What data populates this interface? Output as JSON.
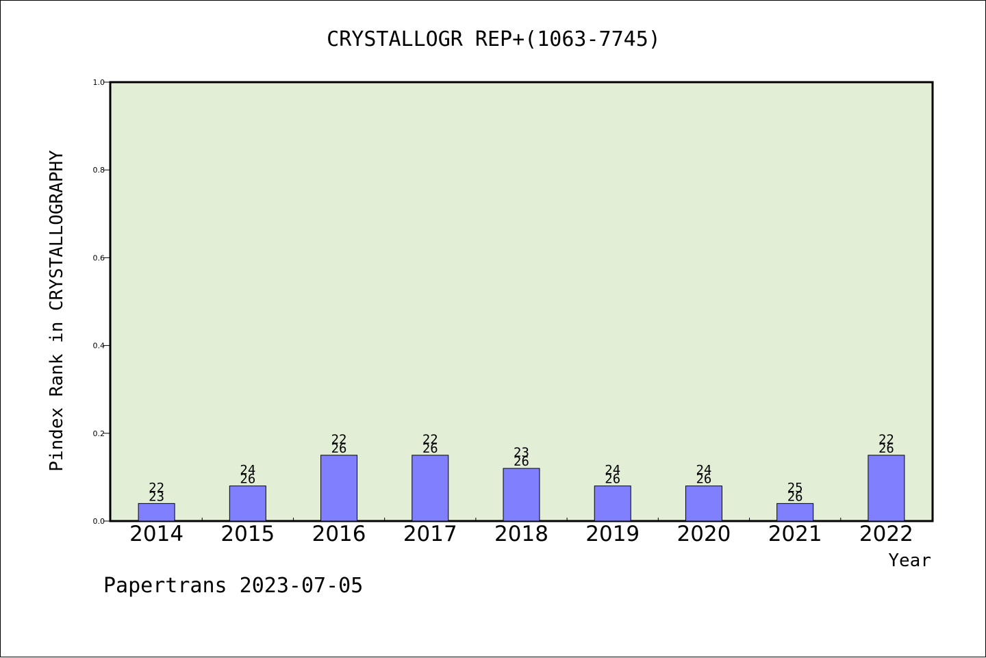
{
  "chart_data": {
    "type": "bar",
    "title": "CRYSTALLOGR REP+(1063-7745)",
    "xlabel": "Year",
    "ylabel": "Pindex Rank in CRYSTALLOGRAPHY",
    "footer": "Papertrans 2023-07-05",
    "ylim": [
      0,
      1.0
    ],
    "yticks": [
      "0.0",
      "0.2",
      "0.4",
      "0.6",
      "0.8",
      "1.0"
    ],
    "grid": false,
    "categories": [
      "2014",
      "2015",
      "2016",
      "2017",
      "2018",
      "2019",
      "2020",
      "2021",
      "2022"
    ],
    "values": [
      0.04,
      0.08,
      0.15,
      0.15,
      0.12,
      0.08,
      0.08,
      0.04,
      0.15
    ],
    "label_top": [
      "22",
      "24",
      "22",
      "22",
      "23",
      "24",
      "24",
      "25",
      "22"
    ],
    "label_bottom": [
      "23",
      "26",
      "26",
      "26",
      "26",
      "26",
      "26",
      "26",
      "26"
    ],
    "colors": {
      "plot_background": "#e2efd6",
      "bar_fill": "#8080ff",
      "bar_stroke": "#000000"
    }
  }
}
